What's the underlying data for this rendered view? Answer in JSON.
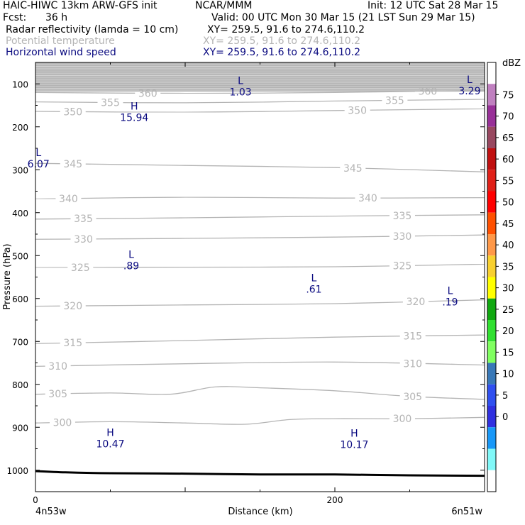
{
  "header": {
    "model": "HAIC-HIWC 13km ARW-GFS init",
    "org": "NCAR/MMM",
    "init": "Init: 12 UTC Sat 28 Mar 15",
    "fcst_label": "Fcst:",
    "fcst_value": "36 h",
    "valid": "Valid: 00 UTC Mon 30 Mar 15 (21 LST Sun 29 Mar 15)",
    "fields": [
      {
        "name": "Radar reflectivity (lamda = 10 cm)",
        "xy": "XY= 259.5, 91.6 to 274.6,110.2",
        "color": "#000000"
      },
      {
        "name": "Potential temperature",
        "xy": "XY= 259.5, 91.6 to 274.6,110.2",
        "color": "#b4b4b4"
      },
      {
        "name": "Horizontal wind speed",
        "xy": "XY= 259.5, 91.6 to 274.6,110.2",
        "color": "#0a0a80"
      }
    ]
  },
  "chart_data": {
    "type": "line",
    "xlabel": "Distance (km)",
    "ylabel": "Pressure (hPa)",
    "xlim": [
      0,
      300
    ],
    "ylim": [
      1050,
      50
    ],
    "x_ticks": [
      {
        "v": 0,
        "label": "0"
      },
      {
        "v": 200,
        "label": "200"
      }
    ],
    "x_end_labels": {
      "left": "4n53w",
      "right": "6n51w"
    },
    "y_ticks": [
      100,
      200,
      300,
      400,
      500,
      600,
      700,
      800,
      900,
      1000
    ],
    "theta_contours": [
      {
        "theta": 300,
        "x": [
          0,
          50,
          100,
          140,
          170,
          200,
          250,
          300
        ],
        "p": [
          890,
          887,
          890,
          893,
          882,
          880,
          880,
          877
        ],
        "labels": [
          {
            "x": 18,
            "text": "300"
          },
          {
            "x": 245,
            "text": "300"
          }
        ]
      },
      {
        "theta": 305,
        "x": [
          0,
          50,
          90,
          120,
          150,
          200,
          250,
          300
        ],
        "p": [
          823,
          820,
          823,
          806,
          808,
          815,
          828,
          835
        ],
        "labels": [
          {
            "x": 15,
            "text": "305"
          },
          {
            "x": 252,
            "text": "305"
          }
        ]
      },
      {
        "theta": 310,
        "x": [
          0,
          100,
          200,
          300
        ],
        "p": [
          758,
          752,
          748,
          755
        ],
        "labels": [
          {
            "x": 15,
            "text": "310"
          },
          {
            "x": 252,
            "text": "310"
          }
        ]
      },
      {
        "theta": 315,
        "x": [
          0,
          100,
          200,
          300
        ],
        "p": [
          705,
          698,
          690,
          685
        ],
        "labels": [
          {
            "x": 25,
            "text": "315"
          },
          {
            "x": 252,
            "text": "315"
          }
        ]
      },
      {
        "theta": 320,
        "x": [
          0,
          100,
          200,
          300
        ],
        "p": [
          618,
          615,
          612,
          603
        ],
        "labels": [
          {
            "x": 25,
            "text": "320"
          },
          {
            "x": 254,
            "text": "320"
          }
        ]
      },
      {
        "theta": 325,
        "x": [
          0,
          100,
          200,
          300
        ],
        "p": [
          528,
          527,
          526,
          520
        ],
        "labels": [
          {
            "x": 30,
            "text": "325"
          },
          {
            "x": 245,
            "text": "325"
          }
        ]
      },
      {
        "theta": 330,
        "x": [
          0,
          100,
          200,
          300
        ],
        "p": [
          462,
          460,
          457,
          452
        ],
        "labels": [
          {
            "x": 32,
            "text": "330"
          },
          {
            "x": 245,
            "text": "330"
          }
        ]
      },
      {
        "theta": 335,
        "x": [
          0,
          100,
          200,
          300
        ],
        "p": [
          415,
          412,
          408,
          405
        ],
        "labels": [
          {
            "x": 32,
            "text": "335"
          },
          {
            "x": 245,
            "text": "335"
          }
        ]
      },
      {
        "theta": 340,
        "x": [
          0,
          100,
          200,
          300
        ],
        "p": [
          368,
          364,
          366,
          365
        ],
        "labels": [
          {
            "x": 22,
            "text": "340"
          },
          {
            "x": 222,
            "text": "340"
          }
        ]
      },
      {
        "theta": 345,
        "x": [
          0,
          100,
          200,
          300
        ],
        "p": [
          285,
          290,
          295,
          305
        ],
        "labels": [
          {
            "x": 25,
            "text": "345"
          },
          {
            "x": 212,
            "text": "345"
          }
        ]
      },
      {
        "theta": 350,
        "x": [
          0,
          100,
          200,
          300
        ],
        "p": [
          164,
          166,
          162,
          158
        ],
        "labels": [
          {
            "x": 25,
            "text": "350"
          },
          {
            "x": 215,
            "text": "350"
          }
        ]
      },
      {
        "theta": 355,
        "x": [
          0,
          100,
          200,
          300
        ],
        "p": [
          142,
          144,
          140,
          136
        ],
        "labels": [
          {
            "x": 50,
            "text": "355"
          },
          {
            "x": 240,
            "text": "355"
          }
        ]
      },
      {
        "theta": 360,
        "x": [
          0,
          100,
          200,
          300
        ],
        "p": [
          120,
          122,
          120,
          115
        ],
        "labels": [
          {
            "x": 75,
            "text": "360"
          },
          {
            "x": 262,
            "text": "360"
          }
        ]
      }
    ],
    "wind_extrema": [
      {
        "type": "L",
        "value": "1.03",
        "x": 137,
        "p": 100
      },
      {
        "type": "L",
        "value": "3.29",
        "x": 290,
        "p": 98
      },
      {
        "type": "H",
        "value": "15.94",
        "x": 66,
        "p": 160
      },
      {
        "type": "L",
        "value": "6.07",
        "x": 2,
        "p": 268
      },
      {
        "type": "L",
        "value": ".89",
        "x": 64,
        "p": 505
      },
      {
        "type": "L",
        "value": ".61",
        "x": 186,
        "p": 560
      },
      {
        "type": "L",
        "value": ".19",
        "x": 277,
        "p": 590
      },
      {
        "type": "H",
        "value": "10.47",
        "x": 50,
        "p": 920
      },
      {
        "type": "H",
        "value": "10.17",
        "x": 213,
        "p": 922
      }
    ],
    "terrain": {
      "x": [
        0,
        20,
        50,
        100,
        150,
        200,
        250,
        300
      ],
      "p": [
        1002,
        1005,
        1007,
        1008,
        1010,
        1010,
        1012,
        1013
      ]
    },
    "top_shading": {
      "from_p": 50,
      "to_p": 118
    },
    "colorbar": {
      "unit": "dBZ",
      "labels": [
        "75",
        "70",
        "65",
        "60",
        "55",
        "50",
        "45",
        "40",
        "35",
        "30",
        "25",
        "20",
        "15",
        "10",
        "5",
        "0"
      ],
      "colors": [
        "#ffffff",
        "#c080c0",
        "#983098",
        "#984860",
        "#c01010",
        "#e02018",
        "#ff0000",
        "#ff5000",
        "#ff9848",
        "#f8d030",
        "#ffff00",
        "#10a810",
        "#30e030",
        "#80ff60",
        "#3878b8",
        "#3050f0",
        "#3030e0",
        "#1898f8",
        "#80f8f8",
        "#ffffff"
      ]
    }
  }
}
